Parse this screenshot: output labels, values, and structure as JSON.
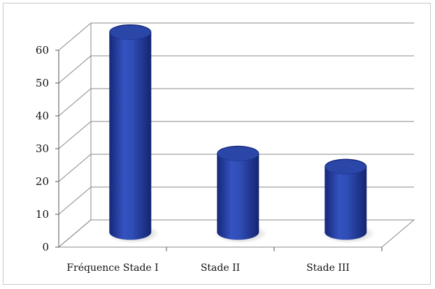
{
  "chart_data": {
    "type": "bar",
    "style": "3d-cylinder",
    "categories": [
      "Fréquence Stade I",
      "Stade II",
      "Stade III"
    ],
    "values": [
      61,
      24,
      20
    ],
    "title": "",
    "xlabel": "",
    "ylabel": "",
    "ylim": [
      0,
      60
    ],
    "yticks": [
      "0",
      "10",
      "20",
      "30",
      "40",
      "50",
      "60"
    ],
    "grid": true,
    "legend": "none",
    "colors": {
      "bar": "#2a47a8",
      "bar_dark": "#16277a",
      "bar_light": "#4a67c8",
      "grid": "#8a8a8a"
    }
  }
}
